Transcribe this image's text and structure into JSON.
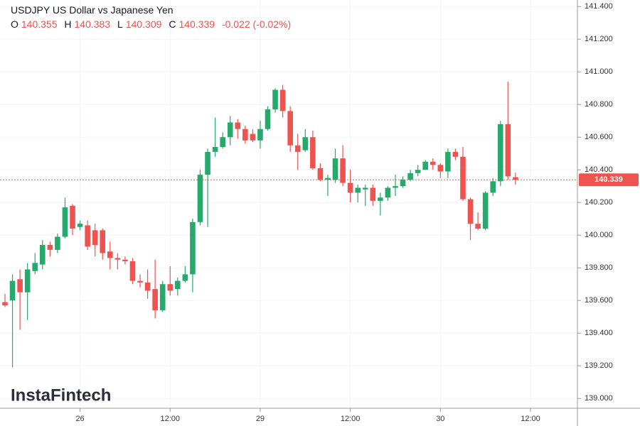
{
  "chart_data": {
    "type": "candlestick",
    "title": "USDJPY US Dollar vs Japanese Yen",
    "ohlc_letters": [
      "O",
      "H",
      "L",
      "C"
    ],
    "change_label": "-0.022 (-0.02%)",
    "watermark": "InstaFintech",
    "up_color": "#26a96c",
    "down_color": "#ef5350",
    "categories": [
      null,
      null,
      null,
      null,
      null,
      null,
      null,
      null,
      null,
      null,
      "26",
      null,
      null,
      null,
      null,
      null,
      null,
      null,
      null,
      null,
      null,
      null,
      "12:00",
      null,
      null,
      null,
      null,
      null,
      null,
      null,
      null,
      null,
      null,
      null,
      "29",
      null,
      null,
      null,
      null,
      null,
      null,
      null,
      null,
      null,
      null,
      null,
      "12:00",
      null,
      null,
      null,
      null,
      null,
      null,
      null,
      null,
      null,
      null,
      null,
      "30",
      null,
      null,
      null,
      null,
      null,
      null,
      null,
      null,
      null,
      null,
      null,
      "12:00"
    ],
    "open": [
      139.59,
      139.6,
      139.73,
      139.65,
      139.78,
      139.82,
      139.94,
      139.91,
      139.99,
      140.18,
      140.05,
      140.06,
      140.03,
      140.03,
      139.9,
      139.86,
      139.85,
      139.84,
      139.72,
      139.71,
      139.67,
      139.54,
      139.7,
      139.67,
      139.72,
      139.76,
      140.08,
      140.37,
      140.51,
      140.54,
      140.6,
      140.69,
      140.65,
      140.62,
      140.58,
      140.65,
      140.77,
      140.89,
      140.76,
      140.55,
      140.52,
      140.6,
      140.41,
      140.34,
      140.34,
      140.47,
      140.32,
      140.26,
      140.28,
      140.29,
      140.21,
      140.23,
      140.29,
      140.3,
      140.34,
      140.38,
      140.4,
      140.45,
      140.43,
      140.39,
      140.51,
      140.48,
      140.22,
      140.07,
      140.04,
      140.26,
      140.33,
      140.68,
      140.355,
      null,
      null
    ],
    "high": [
      139.64,
      139.76,
      139.79,
      139.83,
      139.89,
      139.97,
      139.96,
      140.01,
      140.23,
      140.19,
      140.09,
      140.09,
      140.07,
      140.04,
      139.96,
      139.89,
      139.87,
      139.86,
      139.76,
      139.79,
      139.85,
      139.72,
      139.81,
      139.74,
      139.81,
      140.1,
      140.4,
      140.53,
      140.72,
      140.63,
      140.73,
      140.71,
      140.67,
      140.65,
      140.7,
      140.79,
      140.9,
      140.92,
      140.79,
      140.62,
      140.65,
      140.64,
      140.44,
      140.37,
      140.53,
      140.55,
      140.4,
      140.31,
      140.31,
      140.31,
      140.26,
      140.3,
      140.37,
      140.36,
      140.4,
      140.43,
      140.46,
      140.47,
      140.44,
      140.53,
      140.53,
      140.54,
      140.23,
      140.14,
      140.27,
      140.35,
      140.7,
      140.94,
      140.383,
      null,
      null
    ],
    "low": [
      139.56,
      139.19,
      139.42,
      139.48,
      139.76,
      139.79,
      139.87,
      139.89,
      139.98,
      140.0,
      140.03,
      139.91,
      139.87,
      139.85,
      139.79,
      139.79,
      139.82,
      139.7,
      139.68,
      139.61,
      139.49,
      139.53,
      139.63,
      139.63,
      139.71,
      139.65,
      140.06,
      140.05,
      140.48,
      140.53,
      140.55,
      140.59,
      140.56,
      140.57,
      140.53,
      140.64,
      140.75,
      140.72,
      140.51,
      140.4,
      140.51,
      140.4,
      140.33,
      140.24,
      140.32,
      140.3,
      140.2,
      140.2,
      140.18,
      140.18,
      140.12,
      140.21,
      140.24,
      140.29,
      140.33,
      140.36,
      140.4,
      140.4,
      140.35,
      140.35,
      140.46,
      140.21,
      139.97,
      140.03,
      140.03,
      140.24,
      140.3,
      140.34,
      140.309,
      null,
      null
    ],
    "close": [
      139.57,
      139.72,
      139.65,
      139.79,
      139.83,
      139.94,
      139.91,
      139.99,
      140.17,
      140.04,
      140.07,
      139.93,
      139.94,
      139.89,
      139.86,
      139.85,
      139.84,
      139.72,
      139.71,
      139.66,
      139.54,
      139.7,
      139.66,
      139.72,
      139.76,
      140.08,
      140.37,
      140.51,
      140.54,
      140.6,
      140.69,
      140.65,
      140.58,
      140.58,
      140.65,
      140.77,
      140.89,
      140.76,
      140.55,
      140.51,
      140.6,
      140.41,
      140.34,
      140.35,
      140.47,
      140.32,
      140.26,
      140.29,
      140.29,
      140.21,
      140.23,
      140.29,
      140.3,
      140.34,
      140.38,
      140.4,
      140.45,
      140.43,
      140.39,
      140.51,
      140.48,
      140.22,
      140.07,
      140.04,
      140.26,
      140.33,
      140.68,
      140.36,
      140.339,
      null,
      null
    ],
    "ylim": [
      138.94,
      141.44
    ],
    "yticks": [
      {
        "value": 139,
        "label": "139.000"
      },
      {
        "value": 139.2,
        "label": "139.200"
      },
      {
        "value": 139.4,
        "label": "139.400"
      },
      {
        "value": 139.6,
        "label": "139.600"
      },
      {
        "value": 139.8,
        "label": "139.800"
      },
      {
        "value": 140,
        "label": "140.000"
      },
      {
        "value": 140.2,
        "label": "140.200"
      },
      {
        "value": 140.4,
        "label": "140.400"
      },
      {
        "value": 140.6,
        "label": "140.600"
      },
      {
        "value": 140.8,
        "label": "140.800"
      },
      {
        "value": 141,
        "label": "141.000"
      },
      {
        "value": 141.2,
        "label": "141.200"
      },
      {
        "value": 141.4,
        "label": "141.400"
      }
    ],
    "grid": true
  }
}
